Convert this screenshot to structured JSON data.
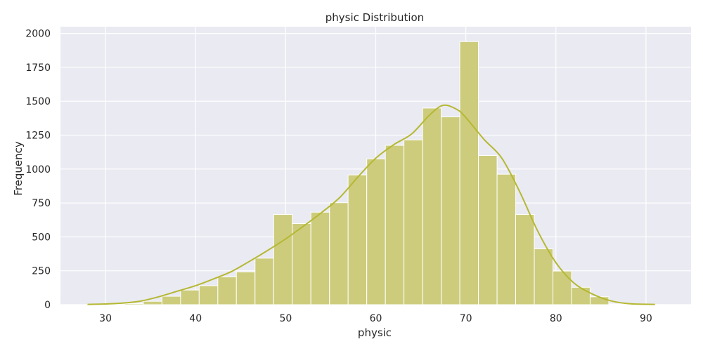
{
  "chart_data": {
    "type": "bar",
    "subtype": "histogram",
    "title": "physic Distribution",
    "xlabel": "physic",
    "ylabel": "Frequency",
    "xlim": [
      25,
      95
    ],
    "ylim": [
      0,
      2050
    ],
    "xticks": [
      30,
      40,
      50,
      60,
      70,
      80,
      90
    ],
    "yticks": [
      0,
      250,
      500,
      750,
      1000,
      1250,
      1500,
      1750,
      2000
    ],
    "grid": true,
    "bar_color": "#cdcc7d",
    "line_color": "#b5b832",
    "background_color": "#eaeaf2",
    "bin_width": 2.0667,
    "bins": [
      {
        "x0": 28.0,
        "count": 5
      },
      {
        "x0": 30.07,
        "count": 3
      },
      {
        "x0": 32.13,
        "count": 8
      },
      {
        "x0": 34.2,
        "count": 25
      },
      {
        "x0": 36.27,
        "count": 62
      },
      {
        "x0": 38.33,
        "count": 108
      },
      {
        "x0": 40.4,
        "count": 140
      },
      {
        "x0": 42.47,
        "count": 205
      },
      {
        "x0": 44.53,
        "count": 242
      },
      {
        "x0": 46.6,
        "count": 343
      },
      {
        "x0": 48.67,
        "count": 665
      },
      {
        "x0": 50.73,
        "count": 598
      },
      {
        "x0": 52.8,
        "count": 682
      },
      {
        "x0": 54.87,
        "count": 752
      },
      {
        "x0": 56.93,
        "count": 957
      },
      {
        "x0": 59.0,
        "count": 1075
      },
      {
        "x0": 61.07,
        "count": 1175
      },
      {
        "x0": 63.13,
        "count": 1215
      },
      {
        "x0": 65.2,
        "count": 1450
      },
      {
        "x0": 67.27,
        "count": 1385
      },
      {
        "x0": 69.33,
        "count": 1940
      },
      {
        "x0": 71.4,
        "count": 1100
      },
      {
        "x0": 73.47,
        "count": 962
      },
      {
        "x0": 75.53,
        "count": 665
      },
      {
        "x0": 77.6,
        "count": 412
      },
      {
        "x0": 79.67,
        "count": 248
      },
      {
        "x0": 81.73,
        "count": 128
      },
      {
        "x0": 83.8,
        "count": 58
      },
      {
        "x0": 85.87,
        "count": 5
      },
      {
        "x0": 87.93,
        "count": 2
      },
      {
        "x0": 90.0,
        "count": 1
      }
    ],
    "kde": {
      "x": [
        28,
        30,
        32,
        34,
        36,
        38,
        40,
        42,
        44,
        46,
        48,
        50,
        52,
        54,
        56,
        58,
        60,
        62,
        64,
        66,
        67.5,
        69,
        70,
        72,
        74,
        76,
        78,
        80,
        82,
        84,
        86,
        88,
        91
      ],
      "y": [
        2,
        5,
        12,
        28,
        60,
        100,
        140,
        190,
        245,
        320,
        400,
        485,
        580,
        680,
        790,
        940,
        1080,
        1180,
        1260,
        1400,
        1470,
        1440,
        1380,
        1220,
        1080,
        830,
        540,
        310,
        160,
        80,
        30,
        8,
        2
      ]
    }
  }
}
